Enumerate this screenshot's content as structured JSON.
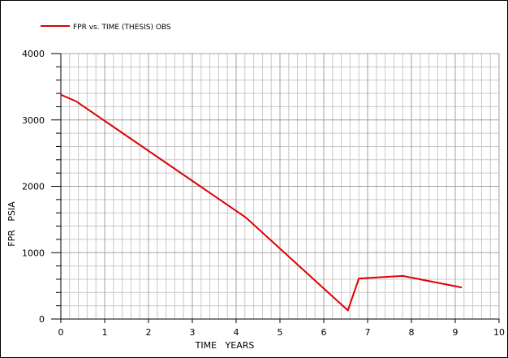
{
  "chart_data": {
    "type": "line",
    "xlabel": "TIME   YEARS",
    "ylabel": "FPR   PSIA",
    "x": [
      0,
      0.35,
      4.22,
      6.55,
      6.8,
      7.8,
      9.15
    ],
    "series": [
      {
        "name": "FPR vs. TIME (THESIS) OBS",
        "color": "#e00000",
        "values": [
          3380,
          3280,
          1530,
          130,
          610,
          650,
          475
        ]
      }
    ],
    "xlim": [
      0,
      10
    ],
    "ylim": [
      0,
      4000
    ],
    "xticks": [
      0,
      1,
      2,
      3,
      4,
      5,
      6,
      7,
      8,
      9,
      10
    ],
    "yticks": [
      0,
      1000,
      2000,
      3000,
      4000
    ],
    "grid": true,
    "minor_divisions": 5,
    "legend": "top-left"
  }
}
